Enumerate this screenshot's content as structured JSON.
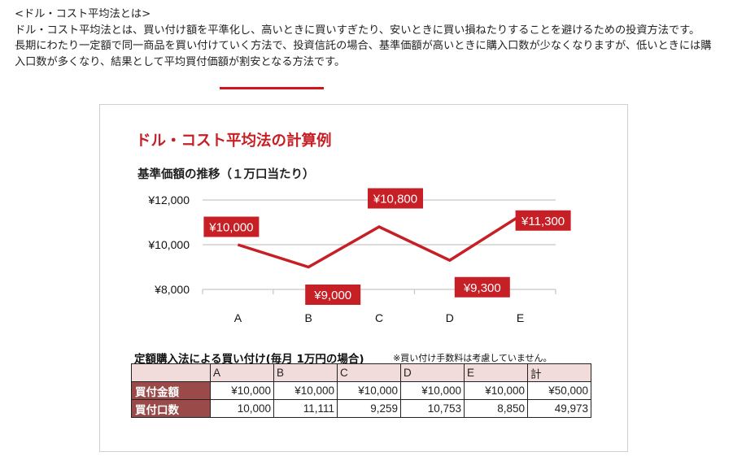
{
  "intro": {
    "heading": "<ドル・コスト平均法とは>",
    "para1": "ドル・コスト平均法とは、買い付け額を平準化し、高いときに買いすぎたり、安いときに買い損ねたりすることを避けるための投資方法です。",
    "para2_a": "長期にわたり一定額で同一商品を買い付けていく方法で、投資信託の場合、基準価額が高いときに購入口数が少なくなりますが、低いときには購入口数が多くなり、結果として",
    "para2_highlight": "平均買付価額が割安",
    "para2_b": "となる方法です。",
    "highlight_color": "#d2141c"
  },
  "figure": {
    "title": "ドル・コスト平均法の計算例",
    "chart_title": "基準価額の推移（１万口当たり）"
  },
  "chart_data": {
    "type": "line",
    "categories": [
      "A",
      "B",
      "C",
      "D",
      "E"
    ],
    "series": [
      {
        "values": [
          10000,
          9000,
          10800,
          9300,
          11300
        ]
      }
    ],
    "data_labels": [
      "¥10,000",
      "¥9,000",
      "¥10,800",
      "¥9,300",
      "¥11,300"
    ],
    "yticks": [
      "¥12,000",
      "¥10,000",
      "¥8,000"
    ],
    "ytick_values": [
      12000,
      10000,
      8000
    ],
    "ylim": [
      8000,
      12000
    ],
    "grid": "horizontal",
    "line_color": "#c61f25",
    "label_bg": "#c61f25"
  },
  "table": {
    "title": "定額購入法による買い付け(毎月 1万円の場合)",
    "note": "※買い付け手数料は考慮していません。",
    "columns": [
      "A",
      "B",
      "C",
      "D",
      "E",
      "計"
    ],
    "rows": [
      {
        "label": "買付金額",
        "values": [
          "¥10,000",
          "¥10,000",
          "¥10,000",
          "¥10,000",
          "¥10,000",
          "¥50,000"
        ]
      },
      {
        "label": "買付口数",
        "values": [
          "10,000",
          "11,111",
          "9,259",
          "10,753",
          "8,850",
          "49,973"
        ]
      }
    ],
    "header_bg": "#f2dcdb",
    "row_header_bg": "#9b4a4a"
  }
}
